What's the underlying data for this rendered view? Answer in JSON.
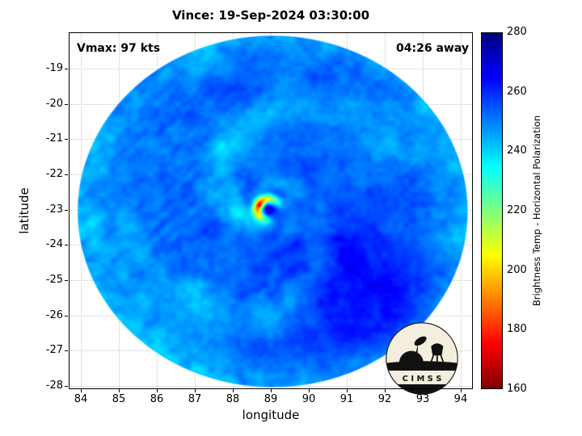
{
  "title": "Vince: 19-Sep-2024 03:30:00",
  "annotations": {
    "vmax": "Vmax: 97 kts",
    "eta": "04:26 away"
  },
  "axes": {
    "xlabel": "longitude",
    "ylabel": "latitude",
    "xticks": [
      84,
      85,
      86,
      87,
      88,
      89,
      90,
      91,
      92,
      93,
      94
    ],
    "yticks": [
      -19,
      -20,
      -21,
      -22,
      -23,
      -24,
      -25,
      -26,
      -27,
      -28
    ]
  },
  "colorbar": {
    "label": "Brightness Temp - Horizontal Polarization",
    "min": 160,
    "max": 280,
    "ticks": [
      280,
      260,
      240,
      220,
      200,
      180,
      160
    ],
    "colormap": "jet-reversed"
  },
  "logo": {
    "text": "C I M S S"
  },
  "chart_data": {
    "type": "heatmap",
    "title": "Vince: 19-Sep-2024 03:30:00",
    "xlabel": "longitude",
    "ylabel": "latitude",
    "xlim": [
      83.68,
      94.32
    ],
    "ylim": [
      -28.09,
      -17.97
    ],
    "value_label": "Brightness Temp - Horizontal Polarization",
    "value_range": [
      160,
      280
    ],
    "grid": true,
    "swath": {
      "center": [
        89.05,
        -23.05
      ],
      "radius_lon": 5.15,
      "radius_lat": 5.0
    },
    "storm": {
      "name": "Vince",
      "time": "19-Sep-2024 03:30:00",
      "vmax_kts": 97,
      "eta": "04:26 away",
      "center": [
        88.95,
        -23.0
      ],
      "eye_temp_k": 272,
      "eye_radius_deg": 0.13,
      "eyewall_min_temp_k": 197,
      "eyewall_radius_deg": 0.3
    },
    "field": {
      "base_temp_k": 252,
      "noise_amp_k": 5,
      "cold_band_amp_k": 9,
      "warm_blobs": [
        {
          "center": [
            90.8,
            -24.7
          ],
          "sigma_deg": 1.4,
          "amp_k": 11
        },
        {
          "center": [
            92.0,
            -26.1
          ],
          "sigma_deg": 1.0,
          "amp_k": 6
        }
      ]
    }
  }
}
